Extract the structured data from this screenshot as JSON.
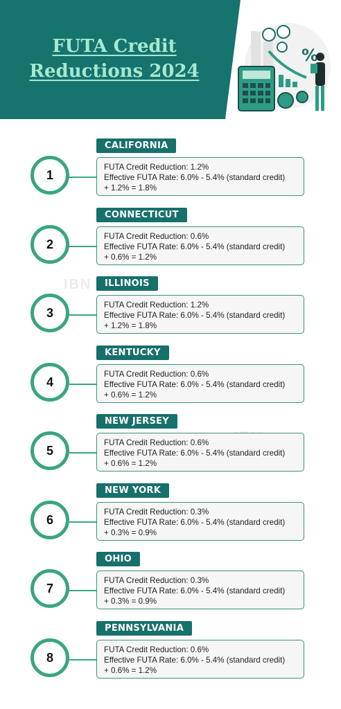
{
  "header": {
    "title_lines": [
      "FUTA Credit",
      "Reductions 2024"
    ]
  },
  "watermarks": [
    "IBN",
    "IBN"
  ],
  "items": [
    {
      "number": "1",
      "state": "CALIFORNIA",
      "lines": [
        "FUTA Credit Reduction: 1.2%",
        "Effective FUTA Rate: 6.0% - 5.4% (standard credit)",
        "+ 1.2% = 1.8%"
      ]
    },
    {
      "number": "2",
      "state": "CONNECTICUT",
      "lines": [
        "FUTA Credit Reduction: 0.6%",
        "Effective FUTA Rate: 6.0% - 5.4% (standard credit)",
        "+ 0.6% = 1.2%"
      ]
    },
    {
      "number": "3",
      "state": "ILLINOIS",
      "lines": [
        "FUTA Credit Reduction: 1.2%",
        "Effective FUTA Rate: 6.0% - 5.4% (standard credit)",
        "+ 1.2% = 1.8%"
      ]
    },
    {
      "number": "4",
      "state": "KENTUCKY",
      "lines": [
        "FUTA Credit Reduction: 0.6%",
        "Effective FUTA Rate: 6.0% - 5.4% (standard credit)",
        "+ 0.6% = 1.2%"
      ]
    },
    {
      "number": "5",
      "state": "NEW JERSEY",
      "lines": [
        "FUTA Credit Reduction: 0.6%",
        "Effective FUTA Rate: 6.0% - 5.4% (standard credit)",
        "+ 0.6% = 1.2%"
      ]
    },
    {
      "number": "6",
      "state": "NEW YORK",
      "lines": [
        "FUTA Credit Reduction: 0.3%",
        "Effective FUTA Rate: 6.0% - 5.4% (standard credit)",
        "+ 0.3% = 0.9%"
      ]
    },
    {
      "number": "7",
      "state": "OHIO",
      "lines": [
        "FUTA Credit Reduction: 0.3%",
        "Effective FUTA Rate: 6.0% - 5.4% (standard credit)",
        "+ 0.3% = 0.9%"
      ]
    },
    {
      "number": "8",
      "state": "PENNSYLVANIA",
      "lines": [
        "FUTA Credit Reduction: 0.6%",
        "Effective FUTA Rate: 6.0% - 5.4% (standard credit)",
        "+ 0.6% = 1.2%"
      ]
    }
  ]
}
